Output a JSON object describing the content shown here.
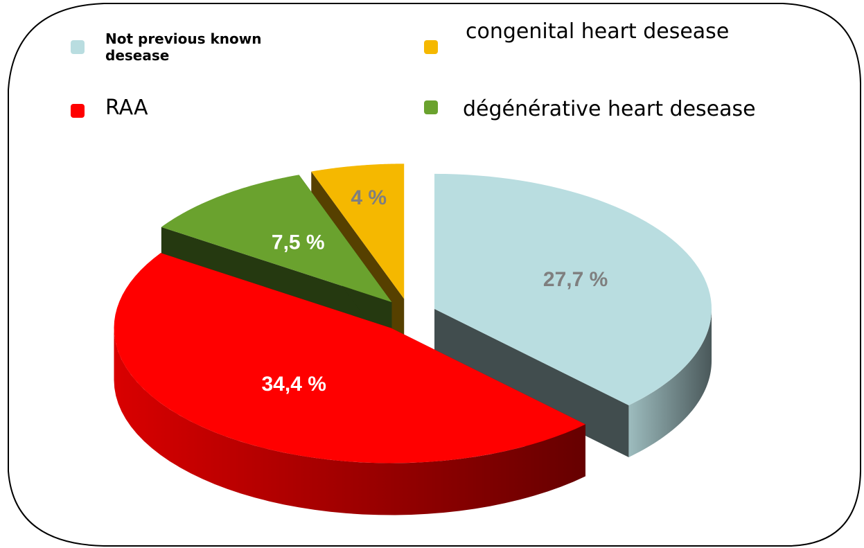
{
  "chart_data": {
    "type": "pie",
    "categories": [
      "Not previous known desease",
      "RAA",
      "dégénérative heart desease",
      "congenital heart desease"
    ],
    "values": [
      27.7,
      34.4,
      7.5,
      4
    ],
    "value_labels": [
      "27,7 %",
      "34,4 %",
      "7,5 %",
      "4 %"
    ],
    "colors": [
      "#b9dde0",
      "#ff0000",
      "#6aa22e",
      "#f5b800"
    ],
    "label_colors": [
      "#7f7f7f",
      "#ffffff",
      "#ffffff",
      "#7f7f7f"
    ],
    "legend": "top"
  }
}
